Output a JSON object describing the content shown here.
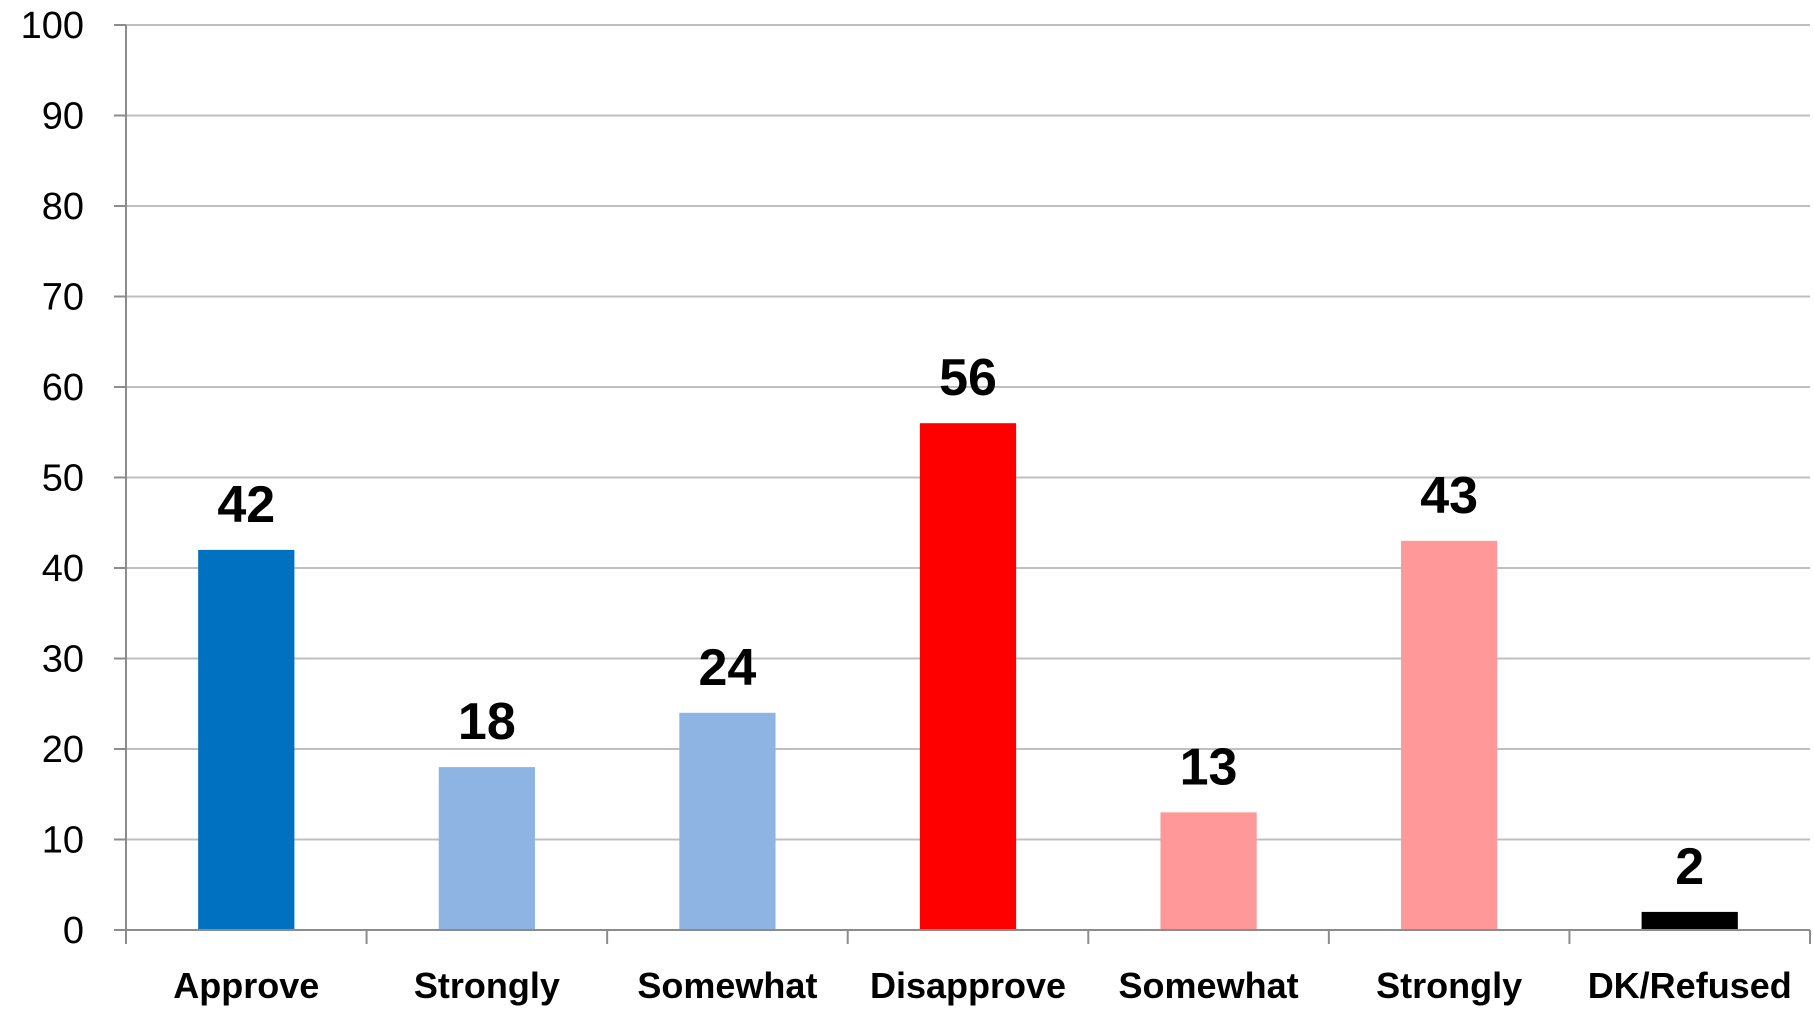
{
  "chart_data": {
    "type": "bar",
    "categories": [
      "Approve",
      "Strongly",
      "Somewhat",
      "Disapprove",
      "Somewhat",
      "Strongly",
      "DK/Refused"
    ],
    "values": [
      42,
      18,
      24,
      56,
      13,
      43,
      2
    ],
    "colors": [
      "#0070c0",
      "#8eb4e3",
      "#8eb4e3",
      "#ff0000",
      "#ff9999",
      "#ff9999",
      "#000000"
    ],
    "yticks": [
      0,
      10,
      20,
      30,
      40,
      50,
      60,
      70,
      80,
      90,
      100
    ],
    "ylim": [
      0,
      100
    ],
    "grid": true,
    "title": "",
    "xlabel": "",
    "ylabel": ""
  }
}
